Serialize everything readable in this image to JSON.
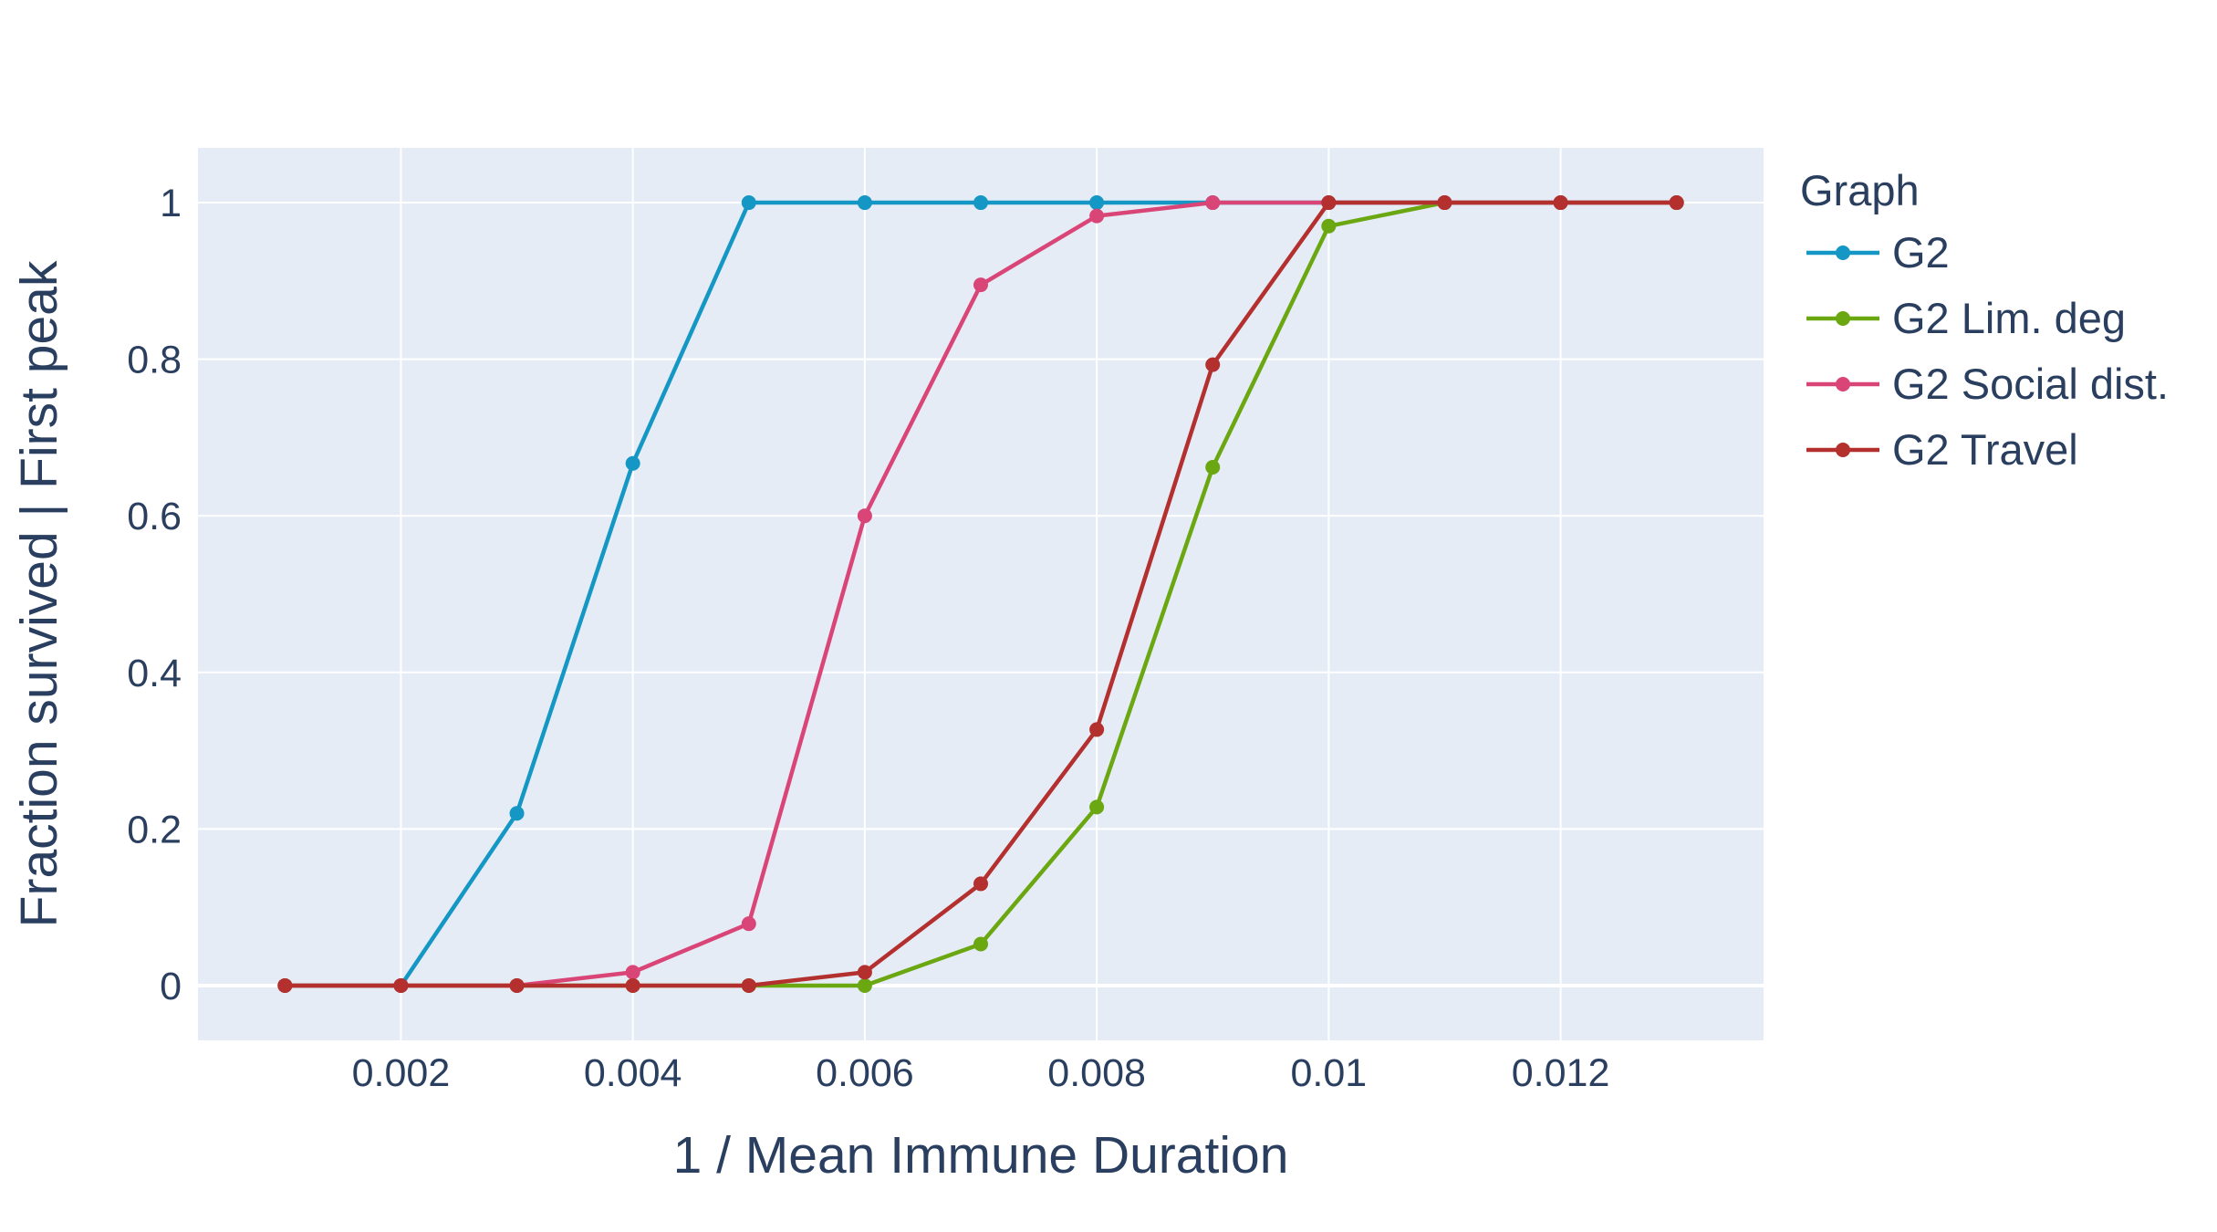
{
  "chart_data": {
    "type": "line",
    "xlabel": "1 / Mean Immune Duration",
    "ylabel": "Fraction survived  | First peak",
    "xlim": [
      0.00025,
      0.01375
    ],
    "ylim": [
      -0.07,
      1.07
    ],
    "x_ticks": [
      0.002,
      0.004,
      0.006,
      0.008,
      0.01,
      0.012
    ],
    "x_tick_labels": [
      "0.002",
      "0.004",
      "0.006",
      "0.008",
      "0.01",
      "0.012"
    ],
    "y_ticks": [
      0,
      0.2,
      0.4,
      0.6,
      0.8,
      1
    ],
    "y_tick_labels": [
      "0",
      "0.2",
      "0.4",
      "0.6",
      "0.8",
      "1"
    ],
    "grid": true,
    "legend_title": "Graph",
    "legend_position": "right",
    "x": [
      0.001,
      0.002,
      0.003,
      0.004,
      0.005,
      0.006,
      0.007,
      0.008,
      0.009,
      0.01,
      0.011,
      0.012,
      0.013
    ],
    "series": [
      {
        "name": "G2",
        "color": "#1497c4",
        "x": [
          0.001,
          0.002,
          0.003,
          0.004,
          0.005,
          0.006,
          0.007,
          0.008,
          0.009,
          0.01,
          0.011,
          0.012,
          0.013
        ],
        "values": [
          0,
          0,
          0.22,
          0.667,
          1,
          1,
          1,
          1,
          1,
          1,
          1,
          1,
          1
        ]
      },
      {
        "name": "G2 Lim. deg",
        "color": "#6aa711",
        "x": [
          0.001,
          0.002,
          0.003,
          0.004,
          0.005,
          0.006,
          0.007,
          0.008,
          0.009,
          0.01,
          0.011,
          0.012,
          0.013
        ],
        "values": [
          0,
          0,
          0,
          0,
          0,
          0,
          0.053,
          0.228,
          0.662,
          0.97,
          1,
          1,
          1
        ]
      },
      {
        "name": "G2 Social dist.",
        "color": "#da4577",
        "x": [
          0.001,
          0.002,
          0.003,
          0.004,
          0.005,
          0.006,
          0.007,
          0.008,
          0.009,
          0.01,
          0.011,
          0.012,
          0.013
        ],
        "values": [
          0,
          0,
          0,
          0.017,
          0.079,
          0.6,
          0.895,
          0.983,
          1,
          1,
          1,
          1,
          1
        ]
      },
      {
        "name": "G2 Travel",
        "color": "#b3302f",
        "x": [
          0.001,
          0.002,
          0.003,
          0.004,
          0.005,
          0.006,
          0.007,
          0.008,
          0.009,
          0.01,
          0.011,
          0.012,
          0.013
        ],
        "values": [
          0,
          0,
          0,
          0,
          0,
          0.017,
          0.13,
          0.327,
          0.793,
          1,
          1,
          1,
          1
        ]
      }
    ],
    "colors": {
      "plot_background": "#e5ecf6",
      "grid": "#ffffff",
      "text": "#2a3f5f"
    }
  }
}
